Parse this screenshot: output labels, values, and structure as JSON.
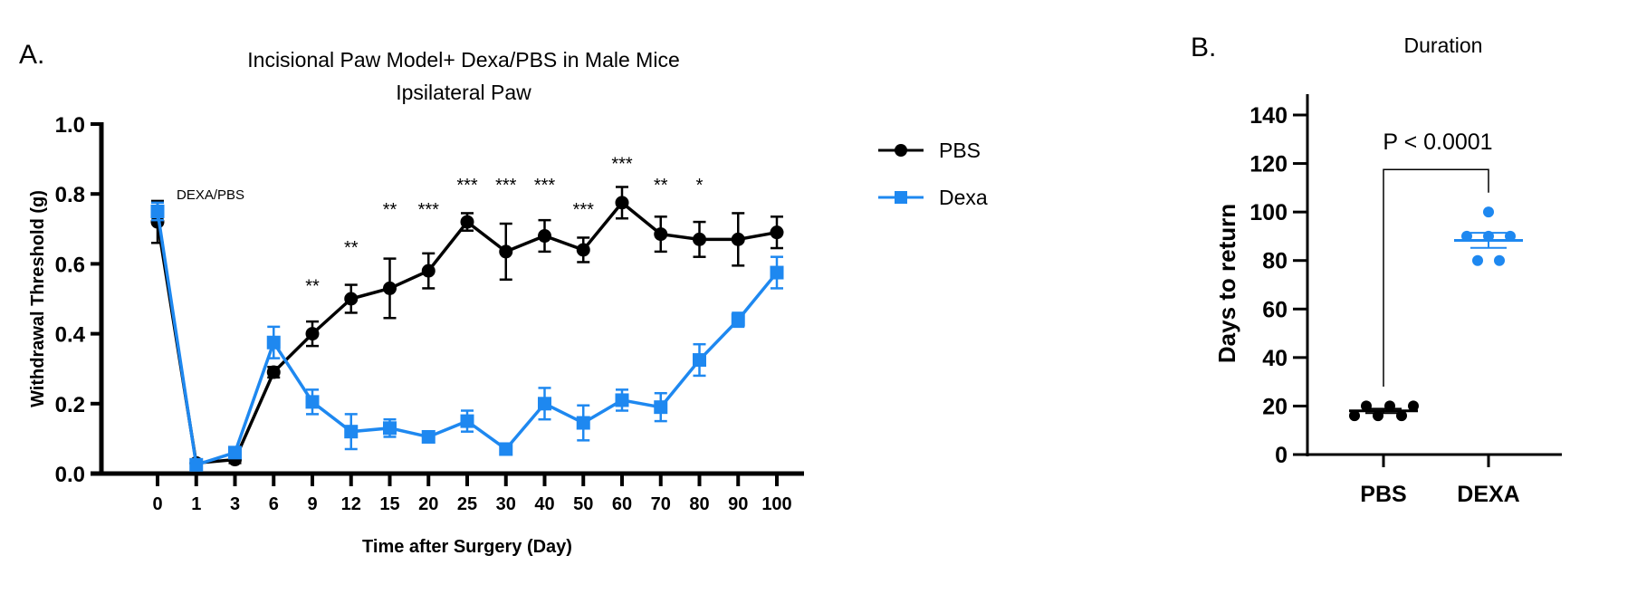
{
  "colors": {
    "pbs": "#000000",
    "dexa": "#1E88F0"
  },
  "chart_data": [
    {
      "type": "line",
      "panel_label": "A.",
      "title": "Incisional Paw Model+ Dexa/PBS in Male Mice",
      "subtitle": "Ipsilateral Paw",
      "xlabel": "Time after Surgery (Day)",
      "ylabel": "Withdrawal Threshold (g)",
      "ylim": [
        0,
        1.0
      ],
      "yticks": [
        "0.0",
        "0.2",
        "0.4",
        "0.6",
        "0.8",
        "1.0"
      ],
      "categories": [
        "0",
        "1",
        "3",
        "6",
        "9",
        "12",
        "15",
        "20",
        "25",
        "30",
        "40",
        "50",
        "60",
        "70",
        "80",
        "90",
        "100"
      ],
      "grid": false,
      "legend": "right",
      "treatment_label": "DEXA/PBS",
      "series": [
        {
          "name": "PBS",
          "marker": "circle",
          "values": [
            0.72,
            0.03,
            0.04,
            0.29,
            0.4,
            0.5,
            0.53,
            0.58,
            0.72,
            0.635,
            0.68,
            0.64,
            0.775,
            0.685,
            0.67,
            0.67,
            0.69
          ],
          "sem": [
            0.06,
            0.01,
            0.01,
            0.015,
            0.035,
            0.04,
            0.085,
            0.05,
            0.025,
            0.08,
            0.045,
            0.035,
            0.045,
            0.05,
            0.05,
            0.075,
            0.045
          ]
        },
        {
          "name": "Dexa",
          "marker": "square",
          "values": [
            0.75,
            0.025,
            0.06,
            0.375,
            0.205,
            0.12,
            0.13,
            0.105,
            0.15,
            0.07,
            0.2,
            0.145,
            0.21,
            0.19,
            0.325,
            0.44,
            0.575
          ],
          "sem": [
            0.025,
            0.01,
            0.01,
            0.045,
            0.035,
            0.05,
            0.025,
            0.01,
            0.03,
            0.015,
            0.045,
            0.05,
            0.03,
            0.04,
            0.045,
            0.02,
            0.045
          ]
        }
      ],
      "annotations": [
        {
          "x": "9",
          "text": "**",
          "y": 0.55
        },
        {
          "x": "12",
          "text": "**",
          "y": 0.66
        },
        {
          "x": "15",
          "text": "**",
          "y": 0.77
        },
        {
          "x": "20",
          "text": "***",
          "y": 0.77
        },
        {
          "x": "25",
          "text": "***",
          "y": 0.84
        },
        {
          "x": "30",
          "text": "***",
          "y": 0.84
        },
        {
          "x": "40",
          "text": "***",
          "y": 0.84
        },
        {
          "x": "50",
          "text": "***",
          "y": 0.77
        },
        {
          "x": "60",
          "text": "***",
          "y": 0.9
        },
        {
          "x": "70",
          "text": "**",
          "y": 0.84
        },
        {
          "x": "80",
          "text": "*",
          "y": 0.84
        }
      ]
    },
    {
      "type": "scatter",
      "panel_label": "B.",
      "title": "Duration",
      "ylabel": "Days to return",
      "ylim": [
        0,
        140
      ],
      "yticks": [
        "0",
        "20",
        "40",
        "60",
        "80",
        "100",
        "120",
        "140"
      ],
      "categories": [
        "PBS",
        "DEXA"
      ],
      "grid": false,
      "series": [
        {
          "name": "PBS",
          "values": [
            16,
            20,
            16,
            20,
            16,
            20
          ],
          "mean": 18,
          "sem": 0.9
        },
        {
          "name": "DEXA",
          "values": [
            90,
            80,
            100,
            90,
            80,
            90
          ],
          "mean": 88.3,
          "sem": 3.1
        }
      ],
      "comparison": {
        "text": "P < 0.0001"
      }
    }
  ]
}
